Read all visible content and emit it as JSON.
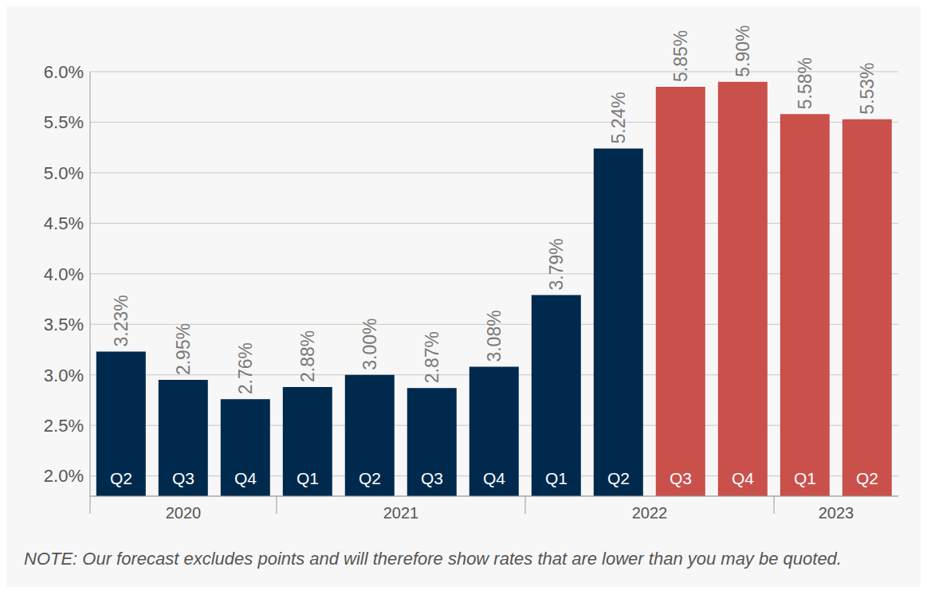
{
  "chart_data": {
    "type": "bar",
    "categories": [
      "Q2",
      "Q3",
      "Q4",
      "Q1",
      "Q2",
      "Q3",
      "Q4",
      "Q1",
      "Q2",
      "Q3",
      "Q4",
      "Q1",
      "Q2"
    ],
    "years": [
      "2020",
      "2020",
      "2020",
      "2021",
      "2021",
      "2021",
      "2021",
      "2022",
      "2022",
      "2022",
      "2022",
      "2023",
      "2023"
    ],
    "values": [
      3.23,
      2.95,
      2.76,
      2.88,
      3.0,
      2.87,
      3.08,
      3.79,
      5.24,
      5.85,
      5.9,
      5.58,
      5.53
    ],
    "value_labels": [
      "3.23%",
      "2.95%",
      "2.76%",
      "2.88%",
      "3.00%",
      "2.87%",
      "3.08%",
      "3.79%",
      "5.24%",
      "5.85%",
      "5.90%",
      "5.58%",
      "5.53%"
    ],
    "colors": [
      "#002a4d",
      "#002a4d",
      "#002a4d",
      "#002a4d",
      "#002a4d",
      "#002a4d",
      "#002a4d",
      "#002a4d",
      "#002a4d",
      "#c9504b",
      "#c9504b",
      "#c9504b",
      "#c9504b"
    ],
    "ylim": [
      1.8,
      6.0
    ],
    "yticks": [
      {
        "value": 2.0,
        "label": "2.0%"
      },
      {
        "value": 2.5,
        "label": "2.5%"
      },
      {
        "value": 3.0,
        "label": "3.0%"
      },
      {
        "value": 3.5,
        "label": "3.5%"
      },
      {
        "value": 4.0,
        "label": "4.0%"
      },
      {
        "value": 4.5,
        "label": "4.5%"
      },
      {
        "value": 5.0,
        "label": "5.0%"
      },
      {
        "value": 5.5,
        "label": "5.5%"
      },
      {
        "value": 6.0,
        "label": "6.0%"
      }
    ],
    "grid": true,
    "data_labels": true,
    "note": "NOTE: Our forecast excludes points and will therefore show rates that are lower than you may be quoted."
  }
}
